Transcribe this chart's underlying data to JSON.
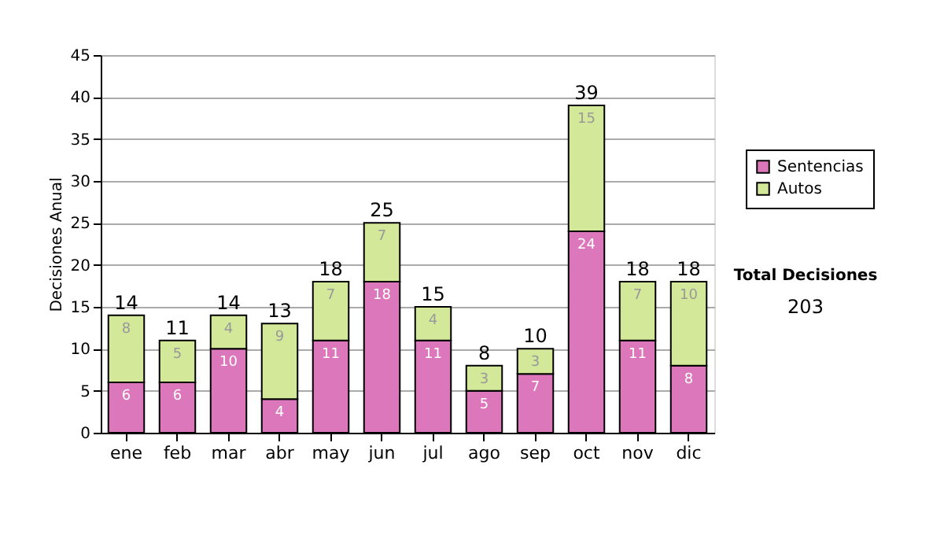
{
  "chart_data": {
    "type": "bar",
    "stacked": true,
    "ylabel": "Decisiones Anual",
    "categories": [
      "ene",
      "feb",
      "mar",
      "abr",
      "may",
      "jun",
      "jul",
      "ago",
      "sep",
      "oct",
      "nov",
      "dic"
    ],
    "series": [
      {
        "name": "Sentencias",
        "color": "#dd77bb",
        "values": [
          6,
          6,
          10,
          4,
          11,
          18,
          11,
          5,
          7,
          24,
          11,
          8
        ]
      },
      {
        "name": "Autos",
        "color": "#d4e89a",
        "values": [
          8,
          5,
          4,
          9,
          7,
          7,
          4,
          3,
          3,
          15,
          7,
          10
        ]
      }
    ],
    "totals": [
      "14",
      "11",
      "14",
      "13",
      "18",
      "25",
      "15",
      "8",
      "10",
      "39",
      "18",
      "18"
    ],
    "data_labels": true,
    "ylim": [
      0,
      45
    ],
    "yticks": [
      0,
      5,
      10,
      15,
      20,
      25,
      30,
      35,
      40,
      45
    ],
    "grid": "y",
    "legend": "right",
    "annotations": [
      "Total Decisiones",
      "203"
    ]
  }
}
